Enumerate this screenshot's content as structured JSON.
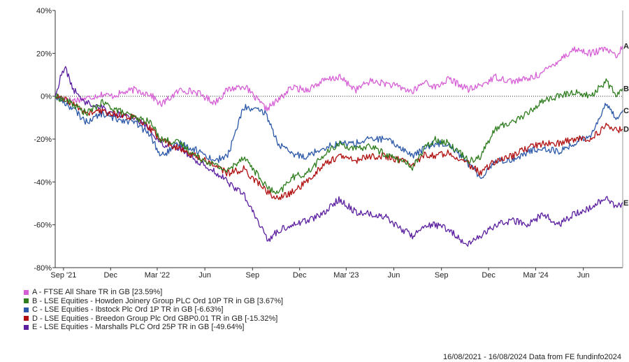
{
  "chart_data": {
    "type": "line",
    "ylim": [
      -80,
      40
    ],
    "y_ticks": [
      -80,
      -60,
      -40,
      -20,
      0,
      20,
      40
    ],
    "y_tick_labels": [
      "-80%",
      "-60%",
      "-40%",
      "-20%",
      "0%",
      "20%",
      "40%"
    ],
    "x_range": [
      "2021-08-16",
      "2024-08-16"
    ],
    "x_ticks": [
      {
        "date": "2021-09-01",
        "label": "Sep '21"
      },
      {
        "date": "2021-12-01",
        "label": "Dec"
      },
      {
        "date": "2022-03-01",
        "label": "Mar '22"
      },
      {
        "date": "2022-06-01",
        "label": "Jun"
      },
      {
        "date": "2022-09-01",
        "label": "Sep"
      },
      {
        "date": "2022-12-01",
        "label": "Dec"
      },
      {
        "date": "2023-03-01",
        "label": "Mar '23"
      },
      {
        "date": "2023-06-01",
        "label": "Jun"
      },
      {
        "date": "2023-09-01",
        "label": "Sep"
      },
      {
        "date": "2023-12-01",
        "label": "Dec"
      },
      {
        "date": "2024-03-01",
        "label": "Mar '24"
      },
      {
        "date": "2024-06-01",
        "label": "Jun"
      }
    ],
    "grid": false,
    "zero_line": "dotted",
    "series": [
      {
        "key": "A",
        "name": "A - FTSE All Share TR in GB [23.59%]",
        "color": "#d65fd6",
        "points": [
          [
            "2021-08-16",
            0
          ],
          [
            "2021-09-15",
            -2
          ],
          [
            "2021-10-15",
            -1
          ],
          [
            "2021-11-15",
            1
          ],
          [
            "2021-12-01",
            0
          ],
          [
            "2022-01-15",
            3
          ],
          [
            "2022-02-15",
            1
          ],
          [
            "2022-03-08",
            -4
          ],
          [
            "2022-04-15",
            3
          ],
          [
            "2022-05-15",
            2
          ],
          [
            "2022-06-20",
            -3
          ],
          [
            "2022-07-15",
            3
          ],
          [
            "2022-08-15",
            5
          ],
          [
            "2022-09-27",
            -6
          ],
          [
            "2022-10-20",
            -2
          ],
          [
            "2022-11-15",
            4
          ],
          [
            "2022-12-15",
            3
          ],
          [
            "2023-01-15",
            7
          ],
          [
            "2023-02-15",
            9
          ],
          [
            "2023-03-20",
            3
          ],
          [
            "2023-04-15",
            7
          ],
          [
            "2023-05-15",
            6
          ],
          [
            "2023-06-15",
            4
          ],
          [
            "2023-07-07",
            2
          ],
          [
            "2023-08-01",
            7
          ],
          [
            "2023-08-20",
            4
          ],
          [
            "2023-09-15",
            8
          ],
          [
            "2023-10-25",
            3
          ],
          [
            "2023-11-15",
            5
          ],
          [
            "2023-12-15",
            9
          ],
          [
            "2024-01-15",
            7
          ],
          [
            "2024-02-15",
            8
          ],
          [
            "2024-03-15",
            11
          ],
          [
            "2024-04-15",
            17
          ],
          [
            "2024-05-15",
            22
          ],
          [
            "2024-06-15",
            20
          ],
          [
            "2024-07-15",
            22
          ],
          [
            "2024-08-05",
            18
          ],
          [
            "2024-08-16",
            23.59
          ]
        ]
      },
      {
        "key": "B",
        "name": "B - LSE Equities - Howden Joinery Group PLC Ord 10P TR in GB [3.67%]",
        "color": "#2e7d1e",
        "points": [
          [
            "2021-08-16",
            0
          ],
          [
            "2021-09-15",
            -3
          ],
          [
            "2021-10-15",
            -8
          ],
          [
            "2021-11-15",
            -3
          ],
          [
            "2021-12-01",
            -5
          ],
          [
            "2022-01-15",
            -10
          ],
          [
            "2022-02-15",
            -12
          ],
          [
            "2022-03-08",
            -20
          ],
          [
            "2022-04-15",
            -22
          ],
          [
            "2022-05-15",
            -28
          ],
          [
            "2022-06-20",
            -32
          ],
          [
            "2022-07-15",
            -35
          ],
          [
            "2022-08-15",
            -28
          ],
          [
            "2022-09-27",
            -42
          ],
          [
            "2022-10-20",
            -46
          ],
          [
            "2022-11-15",
            -38
          ],
          [
            "2022-12-15",
            -36
          ],
          [
            "2023-01-15",
            -28
          ],
          [
            "2023-02-15",
            -22
          ],
          [
            "2023-03-20",
            -25
          ],
          [
            "2023-04-15",
            -23
          ],
          [
            "2023-05-15",
            -27
          ],
          [
            "2023-06-15",
            -30
          ],
          [
            "2023-07-07",
            -33
          ],
          [
            "2023-08-01",
            -24
          ],
          [
            "2023-08-20",
            -20
          ],
          [
            "2023-09-15",
            -22
          ],
          [
            "2023-10-25",
            -30
          ],
          [
            "2023-11-15",
            -28
          ],
          [
            "2023-12-15",
            -15
          ],
          [
            "2024-01-15",
            -12
          ],
          [
            "2024-02-15",
            -8
          ],
          [
            "2024-03-15",
            -2
          ],
          [
            "2024-04-15",
            0
          ],
          [
            "2024-05-15",
            2
          ],
          [
            "2024-06-15",
            0
          ],
          [
            "2024-07-15",
            7
          ],
          [
            "2024-08-05",
            0
          ],
          [
            "2024-08-16",
            3.67
          ]
        ]
      },
      {
        "key": "C",
        "name": "C - LSE Equities - Ibstock Plc Ord 1P TR in GB [-6.63%]",
        "color": "#2b58a8",
        "points": [
          [
            "2021-08-16",
            0
          ],
          [
            "2021-09-15",
            -5
          ],
          [
            "2021-10-15",
            -12
          ],
          [
            "2021-11-15",
            -8
          ],
          [
            "2021-12-01",
            -10
          ],
          [
            "2022-01-15",
            -12
          ],
          [
            "2022-02-15",
            -18
          ],
          [
            "2022-03-08",
            -28
          ],
          [
            "2022-04-15",
            -22
          ],
          [
            "2022-05-15",
            -25
          ],
          [
            "2022-06-20",
            -30
          ],
          [
            "2022-07-15",
            -28
          ],
          [
            "2022-08-15",
            -5
          ],
          [
            "2022-09-27",
            -8
          ],
          [
            "2022-10-20",
            -22
          ],
          [
            "2022-11-15",
            -27
          ],
          [
            "2022-12-15",
            -28
          ],
          [
            "2023-01-15",
            -24
          ],
          [
            "2023-02-15",
            -22
          ],
          [
            "2023-03-20",
            -22
          ],
          [
            "2023-04-15",
            -20
          ],
          [
            "2023-05-15",
            -20
          ],
          [
            "2023-06-15",
            -24
          ],
          [
            "2023-07-07",
            -28
          ],
          [
            "2023-08-01",
            -24
          ],
          [
            "2023-08-20",
            -22
          ],
          [
            "2023-09-15",
            -22
          ],
          [
            "2023-10-25",
            -32
          ],
          [
            "2023-11-15",
            -38
          ],
          [
            "2023-12-15",
            -30
          ],
          [
            "2024-01-15",
            -30
          ],
          [
            "2024-02-15",
            -26
          ],
          [
            "2024-03-15",
            -24
          ],
          [
            "2024-04-15",
            -26
          ],
          [
            "2024-05-15",
            -22
          ],
          [
            "2024-06-15",
            -18
          ],
          [
            "2024-07-15",
            -4
          ],
          [
            "2024-08-05",
            -10
          ],
          [
            "2024-08-16",
            -6.63
          ]
        ]
      },
      {
        "key": "D",
        "name": "D - LSE Equities - Breedon Group Plc Ord GBP0.01 TR in GB [-15.32%]",
        "color": "#b00f0f",
        "points": [
          [
            "2021-08-16",
            0
          ],
          [
            "2021-09-15",
            -3
          ],
          [
            "2021-10-15",
            -8
          ],
          [
            "2021-11-15",
            -7
          ],
          [
            "2021-12-01",
            -8
          ],
          [
            "2022-01-15",
            -10
          ],
          [
            "2022-02-15",
            -15
          ],
          [
            "2022-03-08",
            -20
          ],
          [
            "2022-04-15",
            -25
          ],
          [
            "2022-05-15",
            -28
          ],
          [
            "2022-06-20",
            -32
          ],
          [
            "2022-07-15",
            -36
          ],
          [
            "2022-08-15",
            -34
          ],
          [
            "2022-09-27",
            -44
          ],
          [
            "2022-10-20",
            -48
          ],
          [
            "2022-11-15",
            -45
          ],
          [
            "2022-12-15",
            -40
          ],
          [
            "2023-01-15",
            -32
          ],
          [
            "2023-02-15",
            -28
          ],
          [
            "2023-03-20",
            -30
          ],
          [
            "2023-04-15",
            -28
          ],
          [
            "2023-05-15",
            -28
          ],
          [
            "2023-06-15",
            -30
          ],
          [
            "2023-07-07",
            -32
          ],
          [
            "2023-08-01",
            -27
          ],
          [
            "2023-08-20",
            -28
          ],
          [
            "2023-09-15",
            -26
          ],
          [
            "2023-10-25",
            -32
          ],
          [
            "2023-11-15",
            -36
          ],
          [
            "2023-12-15",
            -30
          ],
          [
            "2024-01-15",
            -28
          ],
          [
            "2024-02-15",
            -24
          ],
          [
            "2024-03-15",
            -22
          ],
          [
            "2024-04-15",
            -22
          ],
          [
            "2024-05-15",
            -20
          ],
          [
            "2024-06-15",
            -20
          ],
          [
            "2024-07-15",
            -14
          ],
          [
            "2024-08-05",
            -16
          ],
          [
            "2024-08-16",
            -15.32
          ]
        ]
      },
      {
        "key": "E",
        "name": "E - LSE Equities - Marshalls PLC Ord 25P TR in GB [-49.64%]",
        "color": "#5b1fa0",
        "points": [
          [
            "2021-08-16",
            0
          ],
          [
            "2021-08-28",
            10
          ],
          [
            "2021-09-05",
            13
          ],
          [
            "2021-09-20",
            3
          ],
          [
            "2021-10-15",
            -3
          ],
          [
            "2021-11-15",
            -5
          ],
          [
            "2021-12-01",
            -8
          ],
          [
            "2022-01-15",
            -10
          ],
          [
            "2022-02-15",
            -15
          ],
          [
            "2022-03-08",
            -22
          ],
          [
            "2022-04-15",
            -24
          ],
          [
            "2022-05-15",
            -30
          ],
          [
            "2022-06-20",
            -35
          ],
          [
            "2022-07-15",
            -40
          ],
          [
            "2022-08-15",
            -46
          ],
          [
            "2022-09-10",
            -58
          ],
          [
            "2022-10-01",
            -67
          ],
          [
            "2022-10-20",
            -63
          ],
          [
            "2022-11-15",
            -60
          ],
          [
            "2022-12-15",
            -58
          ],
          [
            "2023-01-15",
            -55
          ],
          [
            "2023-02-15",
            -48
          ],
          [
            "2023-03-20",
            -54
          ],
          [
            "2023-04-15",
            -55
          ],
          [
            "2023-05-15",
            -56
          ],
          [
            "2023-06-15",
            -62
          ],
          [
            "2023-07-07",
            -65
          ],
          [
            "2023-08-01",
            -60
          ],
          [
            "2023-08-20",
            -60
          ],
          [
            "2023-09-15",
            -62
          ],
          [
            "2023-10-20",
            -70
          ],
          [
            "2023-11-15",
            -65
          ],
          [
            "2023-12-15",
            -60
          ],
          [
            "2024-01-15",
            -58
          ],
          [
            "2024-02-15",
            -60
          ],
          [
            "2024-03-15",
            -55
          ],
          [
            "2024-04-15",
            -60
          ],
          [
            "2024-05-15",
            -55
          ],
          [
            "2024-06-15",
            -52
          ],
          [
            "2024-07-15",
            -47
          ],
          [
            "2024-08-05",
            -52
          ],
          [
            "2024-08-16",
            -49.64
          ]
        ]
      }
    ]
  },
  "footer": "16/08/2021 - 16/08/2024 Data from FE fundinfo2024"
}
